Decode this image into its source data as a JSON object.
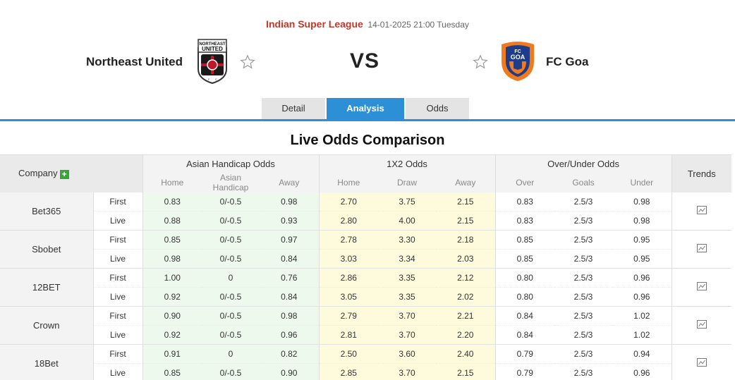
{
  "match": {
    "league": "Indian Super League",
    "datetime": "14-01-2025 21:00 Tuesday",
    "home_team": "Northeast United",
    "away_team": "FC Goa",
    "vs": "VS"
  },
  "tabs": [
    {
      "label": "Detail",
      "active": false
    },
    {
      "label": "Analysis",
      "active": true
    },
    {
      "label": "Odds",
      "active": false
    }
  ],
  "section_title": "Live Odds Comparison",
  "table": {
    "headers": {
      "company": "Company",
      "company_add": "+",
      "asian_handicap": "Asian Handicap Odds",
      "x12": "1X2 Odds",
      "over_under": "Over/Under Odds",
      "trends": "Trends"
    },
    "subheaders": {
      "ah": [
        "Home",
        "Asian Handicap",
        "Away"
      ],
      "x12": [
        "Home",
        "Draw",
        "Away"
      ],
      "ou": [
        "Over",
        "Goals",
        "Under"
      ]
    },
    "companies": [
      {
        "name": "Bet365",
        "rows": [
          {
            "type": "First",
            "ah": [
              "0.83",
              "0/-0.5",
              "0.98"
            ],
            "x12": [
              "2.70",
              "3.75",
              "2.15"
            ],
            "ou": [
              "0.83",
              "2.5/3",
              "0.98"
            ]
          },
          {
            "type": "Live",
            "ah": [
              "0.88",
              "0/-0.5",
              "0.93"
            ],
            "x12": [
              "2.80",
              "4.00",
              "2.15"
            ],
            "ou": [
              "0.83",
              "2.5/3",
              "0.98"
            ]
          }
        ]
      },
      {
        "name": "Sbobet",
        "rows": [
          {
            "type": "First",
            "ah": [
              "0.85",
              "0/-0.5",
              "0.97"
            ],
            "x12": [
              "2.78",
              "3.30",
              "2.18"
            ],
            "ou": [
              "0.85",
              "2.5/3",
              "0.95"
            ]
          },
          {
            "type": "Live",
            "ah": [
              "0.98",
              "0/-0.5",
              "0.84"
            ],
            "x12": [
              "3.03",
              "3.34",
              "2.03"
            ],
            "ou": [
              "0.85",
              "2.5/3",
              "0.95"
            ]
          }
        ]
      },
      {
        "name": "12BET",
        "rows": [
          {
            "type": "First",
            "ah": [
              "1.00",
              "0",
              "0.76"
            ],
            "x12": [
              "2.86",
              "3.35",
              "2.12"
            ],
            "ou": [
              "0.80",
              "2.5/3",
              "0.96"
            ]
          },
          {
            "type": "Live",
            "ah": [
              "0.92",
              "0/-0.5",
              "0.84"
            ],
            "x12": [
              "3.05",
              "3.35",
              "2.02"
            ],
            "ou": [
              "0.80",
              "2.5/3",
              "0.96"
            ]
          }
        ]
      },
      {
        "name": "Crown",
        "rows": [
          {
            "type": "First",
            "ah": [
              "0.90",
              "0/-0.5",
              "0.98"
            ],
            "x12": [
              "2.79",
              "3.70",
              "2.21"
            ],
            "ou": [
              "0.84",
              "2.5/3",
              "1.02"
            ]
          },
          {
            "type": "Live",
            "ah": [
              "0.92",
              "0/-0.5",
              "0.96"
            ],
            "x12": [
              "2.81",
              "3.70",
              "2.20"
            ],
            "ou": [
              "0.84",
              "2.5/3",
              "1.02"
            ]
          }
        ]
      },
      {
        "name": "18Bet",
        "rows": [
          {
            "type": "First",
            "ah": [
              "0.91",
              "0",
              "0.82"
            ],
            "x12": [
              "2.50",
              "3.60",
              "2.40"
            ],
            "ou": [
              "0.79",
              "2.5/3",
              "0.94"
            ]
          },
          {
            "type": "Live",
            "ah": [
              "0.85",
              "0/-0.5",
              "0.90"
            ],
            "x12": [
              "2.85",
              "3.70",
              "2.15"
            ],
            "ou": [
              "0.79",
              "2.5/3",
              "0.96"
            ]
          }
        ]
      }
    ]
  },
  "icons": {
    "home_logo": "northeast-united-crest",
    "away_logo": "fc-goa-crest",
    "favorite": "star-outline-icon",
    "trend": "line-chart-icon"
  },
  "colors": {
    "league": "#c0392b",
    "accent": "#2d8fd6",
    "add_button": "#3aa33a",
    "ah_bg": "#eef9ee",
    "x12_bg": "#fdfbdc"
  }
}
